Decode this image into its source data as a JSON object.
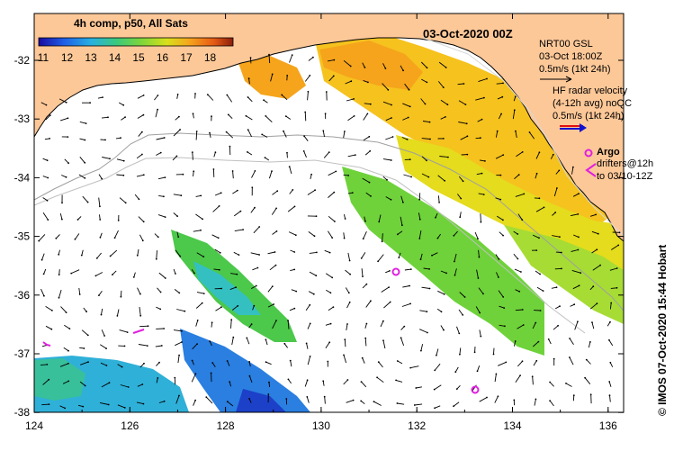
{
  "map": {
    "date_title": "03-Oct-2020 00Z",
    "sst_label": "4h comp, p50, All Sats",
    "colorbar": {
      "ticks": [
        "11",
        "12",
        "13",
        "14",
        "15",
        "16",
        "17",
        "18"
      ],
      "colors": [
        "#1a0aa0",
        "#1f5fe6",
        "#28b0e0",
        "#3ac97c",
        "#7fd63a",
        "#d8e01c",
        "#f6a21c",
        "#e65a14",
        "#8a1e0c"
      ]
    },
    "wind": {
      "line1": "NRT00 GSL",
      "line2": "03-Oct 18:00Z",
      "line3": "0.5m/s (1kt 24h)"
    },
    "hf_radar": {
      "line1": "HF radar velocity",
      "line2": "(4-12h avg) noQC",
      "line3": "0.5m/s (1kt 24h)"
    },
    "argo": {
      "label": "Argo",
      "drifters_line1": "drifters@12h",
      "drifters_line2": "to 03/10-12Z"
    },
    "side_caption": "© IMOS 07-Oct-2020 15:44 Hobart",
    "x_ticks": [
      "124",
      "126",
      "128",
      "130",
      "132",
      "134",
      "136"
    ],
    "y_ticks": [
      "-32",
      "-33",
      "-34",
      "-35",
      "-36",
      "-37",
      "-38"
    ],
    "colors": {
      "land": "#fdc898",
      "arrow": "#000000",
      "argo": "#e020e0",
      "hf_arrow": "#1010d0",
      "hf_arrow_red": "#e01010",
      "isobath": "#a0a0a0"
    }
  }
}
